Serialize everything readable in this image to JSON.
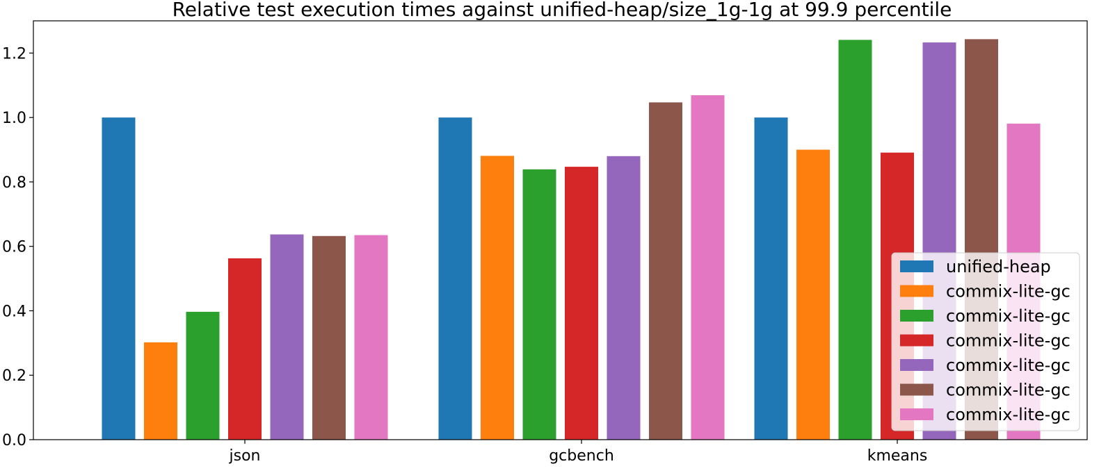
{
  "chart_data": {
    "type": "bar",
    "title": "Relative test execution times against unified-heap/size_1g-1g at 99.9 percentile",
    "xlabel": "",
    "ylabel": "",
    "categories": [
      "json",
      "gcbench",
      "kmeans"
    ],
    "ylim": [
      0,
      1.3
    ],
    "yticks": [
      "0.0",
      "0.2",
      "0.4",
      "0.6",
      "0.8",
      "1.0",
      "1.2"
    ],
    "grid": false,
    "legend_position": "lower-right",
    "series": [
      {
        "name": "unified-heap",
        "color": "#1f77b4",
        "values": [
          1.0,
          1.0,
          1.0
        ]
      },
      {
        "name": "commix-lite-gc",
        "color": "#ff7f0e",
        "values": [
          0.302,
          0.881,
          0.9
        ]
      },
      {
        "name": "commix-lite-gc",
        "color": "#2ca02c",
        "values": [
          0.397,
          0.839,
          1.241
        ]
      },
      {
        "name": "commix-lite-gc",
        "color": "#d62728",
        "values": [
          0.563,
          0.847,
          0.891
        ]
      },
      {
        "name": "commix-lite-gc",
        "color": "#9467bd",
        "values": [
          0.637,
          0.88,
          1.233
        ]
      },
      {
        "name": "commix-lite-gc",
        "color": "#8c564b",
        "values": [
          0.632,
          1.047,
          1.243
        ]
      },
      {
        "name": "commix-lite-gc",
        "color": "#e377c2",
        "values": [
          0.635,
          1.069,
          0.981
        ]
      }
    ]
  }
}
